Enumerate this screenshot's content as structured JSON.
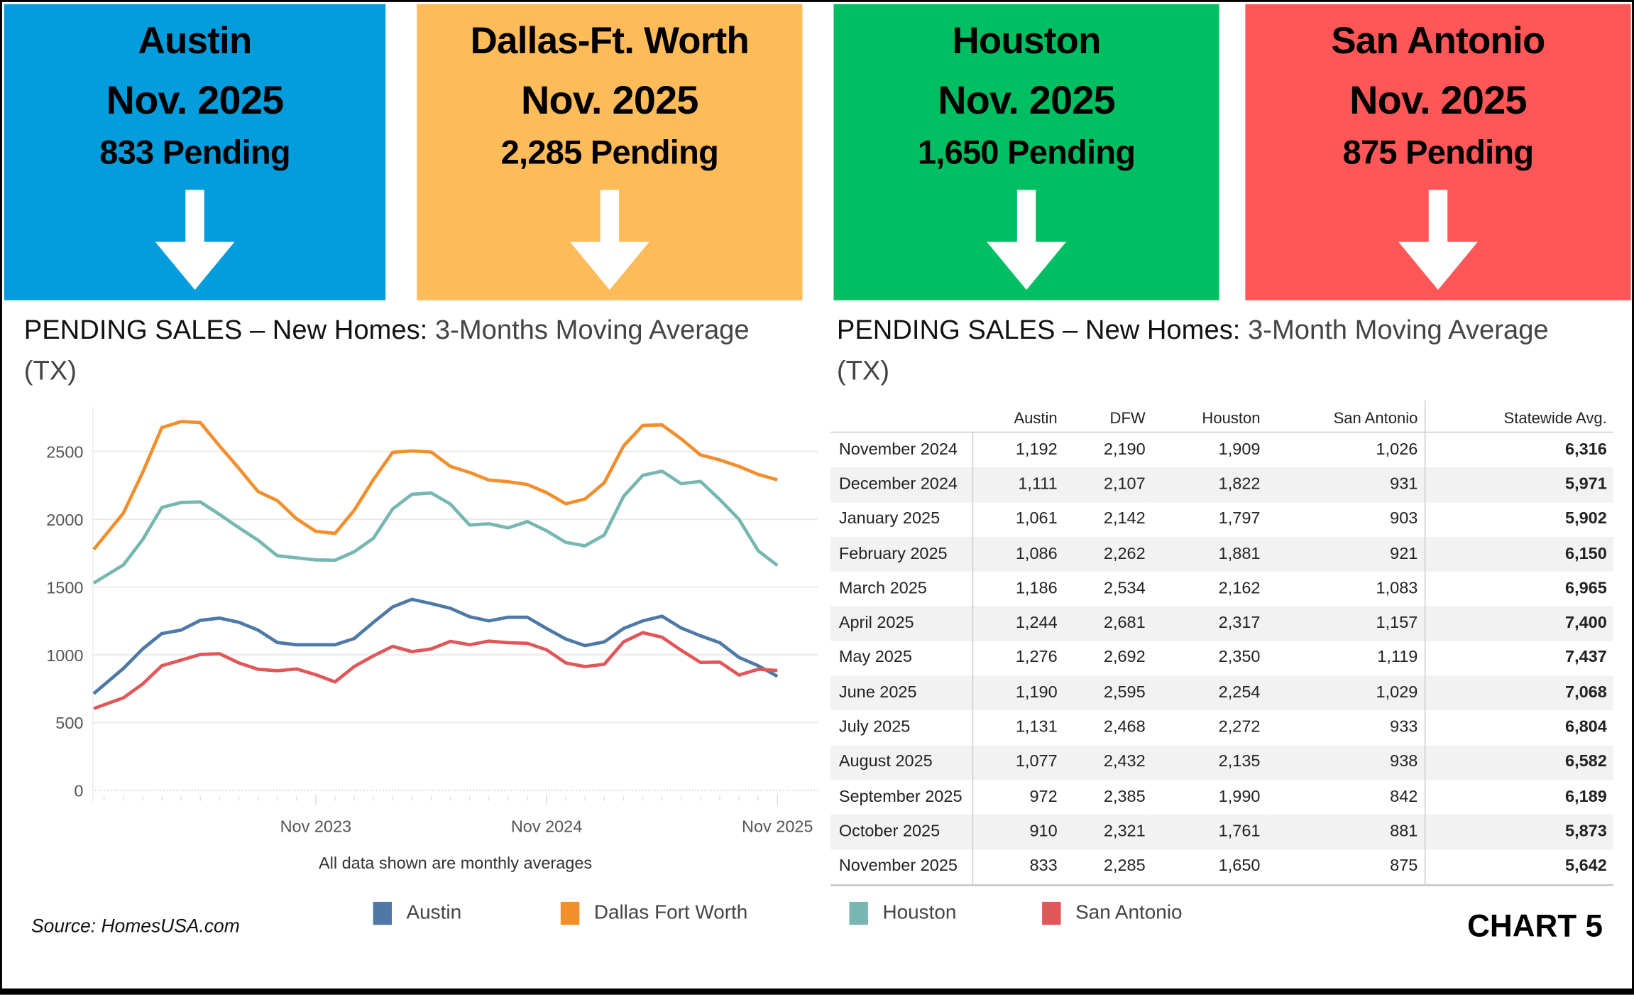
{
  "cards": [
    {
      "city": "Austin",
      "month": "Nov. 2025",
      "pending": "833 Pending",
      "color": "#039CDD",
      "trend": "down-arrow"
    },
    {
      "city": "Dallas-Ft. Worth",
      "month": "Nov. 2025",
      "pending": "2,285 Pending",
      "color": "#FDBB5A",
      "trend": "down-arrow"
    },
    {
      "city": "Houston",
      "month": "Nov. 2025",
      "pending": "1,650 Pending",
      "color": "#00BF63",
      "trend": "down-arrow"
    },
    {
      "city": "San Antonio",
      "month": "Nov. 2025",
      "pending": "875 Pending",
      "color": "#FF5757",
      "trend": "down-arrow"
    }
  ],
  "left_title": {
    "bold": "PENDING SALES – New Homes: ",
    "rest": "3-Months  Moving Average (TX)"
  },
  "right_title": {
    "bold": "PENDING SALES – New Homes:  ",
    "rest": "3-Month Moving Average (TX)"
  },
  "chart_data": {
    "type": "line",
    "title": "PENDING SALES – New Homes: 3-Months Moving Average (TX)",
    "note": "All data shown are monthly averages",
    "x": [
      "Dec 2022",
      "Jan 2023",
      "Feb 2023",
      "Mar 2023",
      "Apr 2023",
      "May 2023",
      "Jun 2023",
      "Jul 2023",
      "Aug 2023",
      "Sep 2023",
      "Oct 2023",
      "Nov 2023",
      "Dec 2023",
      "Jan 2024",
      "Feb 2024",
      "Mar 2024",
      "Apr 2024",
      "May 2024",
      "Jun 2024",
      "Jul 2024",
      "Aug 2024",
      "Sep 2024",
      "Oct 2024",
      "Nov 2024",
      "Dec 2024",
      "Jan 2025",
      "Feb 2025",
      "Mar 2025",
      "Apr 2025",
      "May 2025",
      "Jun 2025",
      "Jul 2025",
      "Aug 2025",
      "Sep 2025",
      "Oct 2025",
      "Nov 2025"
    ],
    "x_ticks": [
      "Nov 2023",
      "Nov 2024",
      "Nov 2025"
    ],
    "y_ticks": [
      0,
      500,
      1000,
      1500,
      2000,
      2500
    ],
    "ylim": [
      0,
      2800
    ],
    "grid": true,
    "legend_position": "bottom",
    "series": [
      {
        "name": "Austin",
        "color": "#4E79A7",
        "values": [
          713,
          899,
          1043,
          1157,
          1182,
          1254,
          1271,
          1240,
          1182,
          1091,
          1074,
          1074,
          1074,
          1120,
          1240,
          1353,
          1409,
          1378,
          1343,
          1281,
          1250,
          1277,
          1277,
          1194,
          1116,
          1068,
          1095,
          1194,
          1250,
          1285,
          1198,
          1140,
          1089,
          981,
          919,
          841
        ]
      },
      {
        "name": "Dallas Fort Worth",
        "color": "#F28E2B",
        "values": [
          1777,
          2045,
          2345,
          2676,
          2721,
          2713,
          2541,
          2376,
          2205,
          2138,
          2004,
          1911,
          1895,
          2066,
          2293,
          2494,
          2504,
          2496,
          2390,
          2345,
          2289,
          2277,
          2256,
          2196,
          2114,
          2149,
          2269,
          2541,
          2692,
          2696,
          2593,
          2475,
          2438,
          2390,
          2331,
          2291
        ]
      },
      {
        "name": "Houston",
        "color": "#76B7B2",
        "values": [
          1529,
          1663,
          1849,
          2087,
          2124,
          2128,
          2035,
          1938,
          1845,
          1731,
          1715,
          1700,
          1698,
          1760,
          1860,
          2076,
          2184,
          2194,
          2112,
          1957,
          1967,
          1936,
          1983,
          1915,
          1829,
          1804,
          1884,
          2169,
          2324,
          2355,
          2262,
          2279,
          2145,
          2000,
          1767,
          1659
        ]
      },
      {
        "name": "San Antonio",
        "color": "#E15759",
        "values": [
          603,
          682,
          785,
          919,
          961,
          1002,
          1008,
          940,
          893,
          882,
          895,
          853,
          800,
          913,
          992,
          1062,
          1023,
          1043,
          1099,
          1074,
          1101,
          1089,
          1085,
          1037,
          940,
          913,
          930,
          1095,
          1163,
          1130,
          1033,
          944,
          946,
          851,
          893,
          884
        ]
      }
    ]
  },
  "table": {
    "headers": [
      "",
      "Austin",
      "DFW",
      "Houston",
      "San Antonio",
      "Statewide Avg."
    ],
    "rows": [
      [
        "November 2024",
        "1,192",
        "2,190",
        "1,909",
        "1,026",
        "6,316"
      ],
      [
        "December 2024",
        "1,111",
        "2,107",
        "1,822",
        "931",
        "5,971"
      ],
      [
        "January 2025",
        "1,061",
        "2,142",
        "1,797",
        "903",
        "5,902"
      ],
      [
        "February 2025",
        "1,086",
        "2,262",
        "1,881",
        "921",
        "6,150"
      ],
      [
        "March 2025",
        "1,186",
        "2,534",
        "2,162",
        "1,083",
        "6,965"
      ],
      [
        "April 2025",
        "1,244",
        "2,681",
        "2,317",
        "1,157",
        "7,400"
      ],
      [
        "May 2025",
        "1,276",
        "2,692",
        "2,350",
        "1,119",
        "7,437"
      ],
      [
        "June 2025",
        "1,190",
        "2,595",
        "2,254",
        "1,029",
        "7,068"
      ],
      [
        "July 2025",
        "1,131",
        "2,468",
        "2,272",
        "933",
        "6,804"
      ],
      [
        "August 2025",
        "1,077",
        "2,432",
        "2,135",
        "938",
        "6,582"
      ],
      [
        "September 2025",
        "972",
        "2,385",
        "1,990",
        "842",
        "6,189"
      ],
      [
        "October 2025",
        "910",
        "2,321",
        "1,761",
        "881",
        "5,873"
      ],
      [
        "November 2025",
        "833",
        "2,285",
        "1,650",
        "875",
        "5,642"
      ]
    ]
  },
  "source": "Source: HomesUSA.com",
  "chart_label": "CHART 5"
}
